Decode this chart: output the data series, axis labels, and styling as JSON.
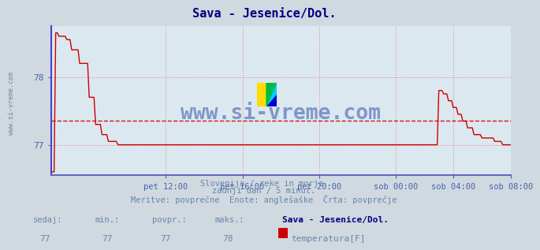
{
  "title": "Sava - Jesenice/Dol.",
  "title_color": "#000080",
  "bg_color": "#d0d8e0",
  "plot_bg_color": "#dce8f0",
  "grid_color": "#e08080",
  "left_spine_color": "#4444cc",
  "bottom_spine_color": "#6666bb",
  "axis_label_color": "#4466aa",
  "line_color": "#cc0000",
  "avg_line_color": "#cc0000",
  "avg_line_value": 77.35,
  "y_min": 76.55,
  "y_max": 78.75,
  "y_ticks": [
    77,
    78
  ],
  "x_tick_labels": [
    "pet 12:00",
    "pet 16:00",
    "pet 20:00",
    "sob 00:00",
    "sob 04:00",
    "sob 08:00"
  ],
  "x_tick_positions": [
    72,
    120,
    168,
    216,
    252,
    288
  ],
  "footer_line1": "Slovenija / reke in morje.",
  "footer_line2": "zadnji dan / 5 minut.",
  "footer_line3": "Meritve: povprečne  Enote: anglešaške  Črta: povprečje",
  "footer_color": "#6688aa",
  "legend_title": "Sava - Jesenice/Dol.",
  "legend_label": "temperatura[F]",
  "legend_color": "#cc0000",
  "sedaj": 77,
  "min_val": 77,
  "povpr": 77,
  "maks": 78,
  "watermark": "www.si-vreme.com",
  "watermark_color": "#3355aa",
  "logo_colors": [
    "#ffdd00",
    "#00ccff",
    "#0000cc",
    "#00bb44"
  ],
  "left_label": "www.si-vreme.com"
}
